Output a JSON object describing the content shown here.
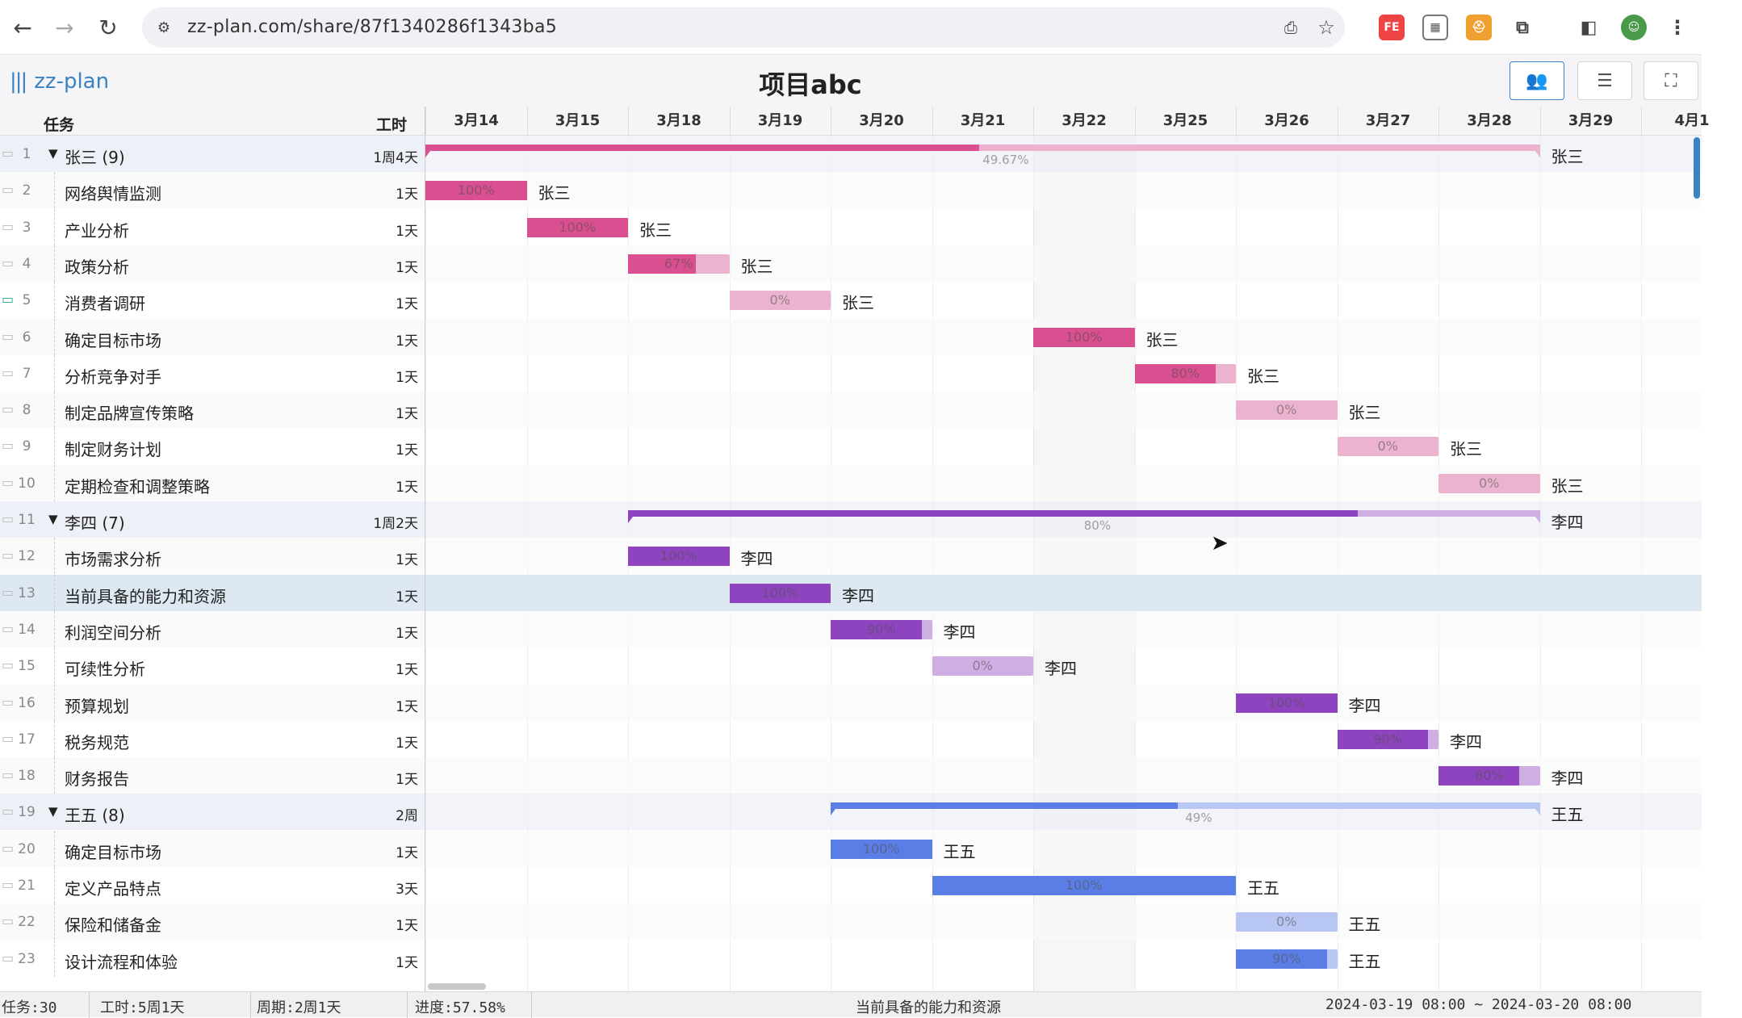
{
  "browser": {
    "url": "zz-plan.com/share/87f1340286f1343ba5",
    "back_icon": "←",
    "forward_icon": "→",
    "reload_icon": "↻"
  },
  "app": {
    "logo_text": "zz-plan",
    "project_title": "项目abc",
    "tools": [
      "people-view",
      "list-view",
      "fullscreen"
    ]
  },
  "grid": {
    "header_task": "任务",
    "header_work": "工时"
  },
  "dates": [
    "3月14",
    "3月15",
    "3月18",
    "3月19",
    "3月20",
    "3月21",
    "3月22",
    "3月25",
    "3月26",
    "3月27",
    "3月28",
    "3月29",
    "4月1"
  ],
  "tasks": [
    {
      "num": "1",
      "name": "张三 (9)",
      "work": "1周4天",
      "group": true,
      "owner": "张三",
      "start": 0,
      "len": 11,
      "progress": 0.4967,
      "pct": "49.67%",
      "color": "#d94f8f",
      "light": "#ecb3cf"
    },
    {
      "num": "2",
      "name": "网络舆情监测",
      "work": "1天",
      "owner": "张三",
      "start": 0,
      "len": 1,
      "progress": 1.0,
      "pct": "100%",
      "color": "#d94f8f",
      "light": "#ecb3cf"
    },
    {
      "num": "3",
      "name": "产业分析",
      "work": "1天",
      "owner": "张三",
      "start": 1,
      "len": 1,
      "progress": 1.0,
      "pct": "100%",
      "color": "#d94f8f",
      "light": "#ecb3cf"
    },
    {
      "num": "4",
      "name": "政策分析",
      "work": "1天",
      "owner": "张三",
      "start": 2,
      "len": 1,
      "progress": 0.67,
      "pct": "67%",
      "color": "#d94f8f",
      "light": "#ecb3cf"
    },
    {
      "num": "5",
      "name": "消费者调研",
      "work": "1天",
      "owner": "张三",
      "start": 3,
      "len": 1,
      "progress": 0,
      "pct": "0%",
      "color": "#d94f8f",
      "light": "#ecb3cf",
      "comment": true
    },
    {
      "num": "6",
      "name": "确定目标市场",
      "work": "1天",
      "owner": "张三",
      "start": 6,
      "len": 1,
      "progress": 1.0,
      "pct": "100%",
      "color": "#d94f8f",
      "light": "#ecb3cf"
    },
    {
      "num": "7",
      "name": "分析竞争对手",
      "work": "1天",
      "owner": "张三",
      "start": 7,
      "len": 1,
      "progress": 0.8,
      "pct": "80%",
      "color": "#d94f8f",
      "light": "#ecb3cf"
    },
    {
      "num": "8",
      "name": "制定品牌宣传策略",
      "work": "1天",
      "owner": "张三",
      "start": 8,
      "len": 1,
      "progress": 0,
      "pct": "0%",
      "color": "#d94f8f",
      "light": "#ecb3cf"
    },
    {
      "num": "9",
      "name": "制定财务计划",
      "work": "1天",
      "owner": "张三",
      "start": 9,
      "len": 1,
      "progress": 0,
      "pct": "0%",
      "color": "#d94f8f",
      "light": "#ecb3cf"
    },
    {
      "num": "10",
      "name": "定期检查和调整策略",
      "work": "1天",
      "owner": "张三",
      "start": 10,
      "len": 1,
      "progress": 0,
      "pct": "0%",
      "color": "#d94f8f",
      "light": "#ecb3cf"
    },
    {
      "num": "11",
      "name": "李四 (7)",
      "work": "1周2天",
      "group": true,
      "owner": "李四",
      "start": 2,
      "len": 9,
      "progress": 0.8,
      "pct": "80%",
      "color": "#8e44bf",
      "light": "#cfaee3"
    },
    {
      "num": "12",
      "name": "市场需求分析",
      "work": "1天",
      "owner": "李四",
      "start": 2,
      "len": 1,
      "progress": 1.0,
      "pct": "100%",
      "color": "#8e44bf",
      "light": "#cfaee3"
    },
    {
      "num": "13",
      "name": "当前具备的能力和资源",
      "work": "1天",
      "owner": "李四",
      "start": 3,
      "len": 1,
      "progress": 1.0,
      "pct": "100%",
      "color": "#8e44bf",
      "light": "#cfaee3",
      "selected": true
    },
    {
      "num": "14",
      "name": "利润空间分析",
      "work": "1天",
      "owner": "李四",
      "start": 4,
      "len": 1,
      "progress": 0.9,
      "pct": "90%",
      "color": "#8e44bf",
      "light": "#cfaee3"
    },
    {
      "num": "15",
      "name": "可续性分析",
      "work": "1天",
      "owner": "李四",
      "start": 5,
      "len": 1,
      "progress": 0,
      "pct": "0%",
      "color": "#8e44bf",
      "light": "#cfaee3"
    },
    {
      "num": "16",
      "name": "预算规划",
      "work": "1天",
      "owner": "李四",
      "start": 8,
      "len": 1,
      "progress": 1.0,
      "pct": "100%",
      "color": "#8e44bf",
      "light": "#cfaee3"
    },
    {
      "num": "17",
      "name": "税务规范",
      "work": "1天",
      "owner": "李四",
      "start": 9,
      "len": 1,
      "progress": 0.9,
      "pct": "90%",
      "color": "#8e44bf",
      "light": "#cfaee3"
    },
    {
      "num": "18",
      "name": "财务报告",
      "work": "1天",
      "owner": "李四",
      "start": 10,
      "len": 1,
      "progress": 0.8,
      "pct": "80%",
      "color": "#8e44bf",
      "light": "#cfaee3"
    },
    {
      "num": "19",
      "name": "王五 (8)",
      "work": "2周",
      "group": true,
      "owner": "王五",
      "start": 4,
      "len": 7,
      "progress": 0.49,
      "pct": "49%",
      "color": "#5b7ee6",
      "light": "#b7c6f3"
    },
    {
      "num": "20",
      "name": "确定目标市场",
      "work": "1天",
      "owner": "王五",
      "start": 4,
      "len": 1,
      "progress": 1.0,
      "pct": "100%",
      "color": "#5b7ee6",
      "light": "#b7c6f3"
    },
    {
      "num": "21",
      "name": "定义产品特点",
      "work": "3天",
      "owner": "王五",
      "start": 5,
      "len": 3,
      "progress": 1.0,
      "pct": "100%",
      "color": "#5b7ee6",
      "light": "#b7c6f3"
    },
    {
      "num": "22",
      "name": "保险和储备金",
      "work": "1天",
      "owner": "王五",
      "start": 8,
      "len": 1,
      "progress": 0,
      "pct": "0%",
      "color": "#5b7ee6",
      "light": "#b7c6f3"
    },
    {
      "num": "23",
      "name": "设计流程和体验",
      "work": "1天",
      "owner": "王五",
      "start": 8,
      "len": 1,
      "progress": 0.9,
      "pct": "90%",
      "color": "#5b7ee6",
      "light": "#b7c6f3"
    }
  ],
  "status": {
    "tasks": "任务:30",
    "work": "工时:5周1天",
    "period": "周期:2周1天",
    "progress": "进度:57.58%",
    "selected_task": "当前具备的能力和资源",
    "date_range": "2024-03-19 08:00 ~ 2024-03-20 08:00"
  }
}
